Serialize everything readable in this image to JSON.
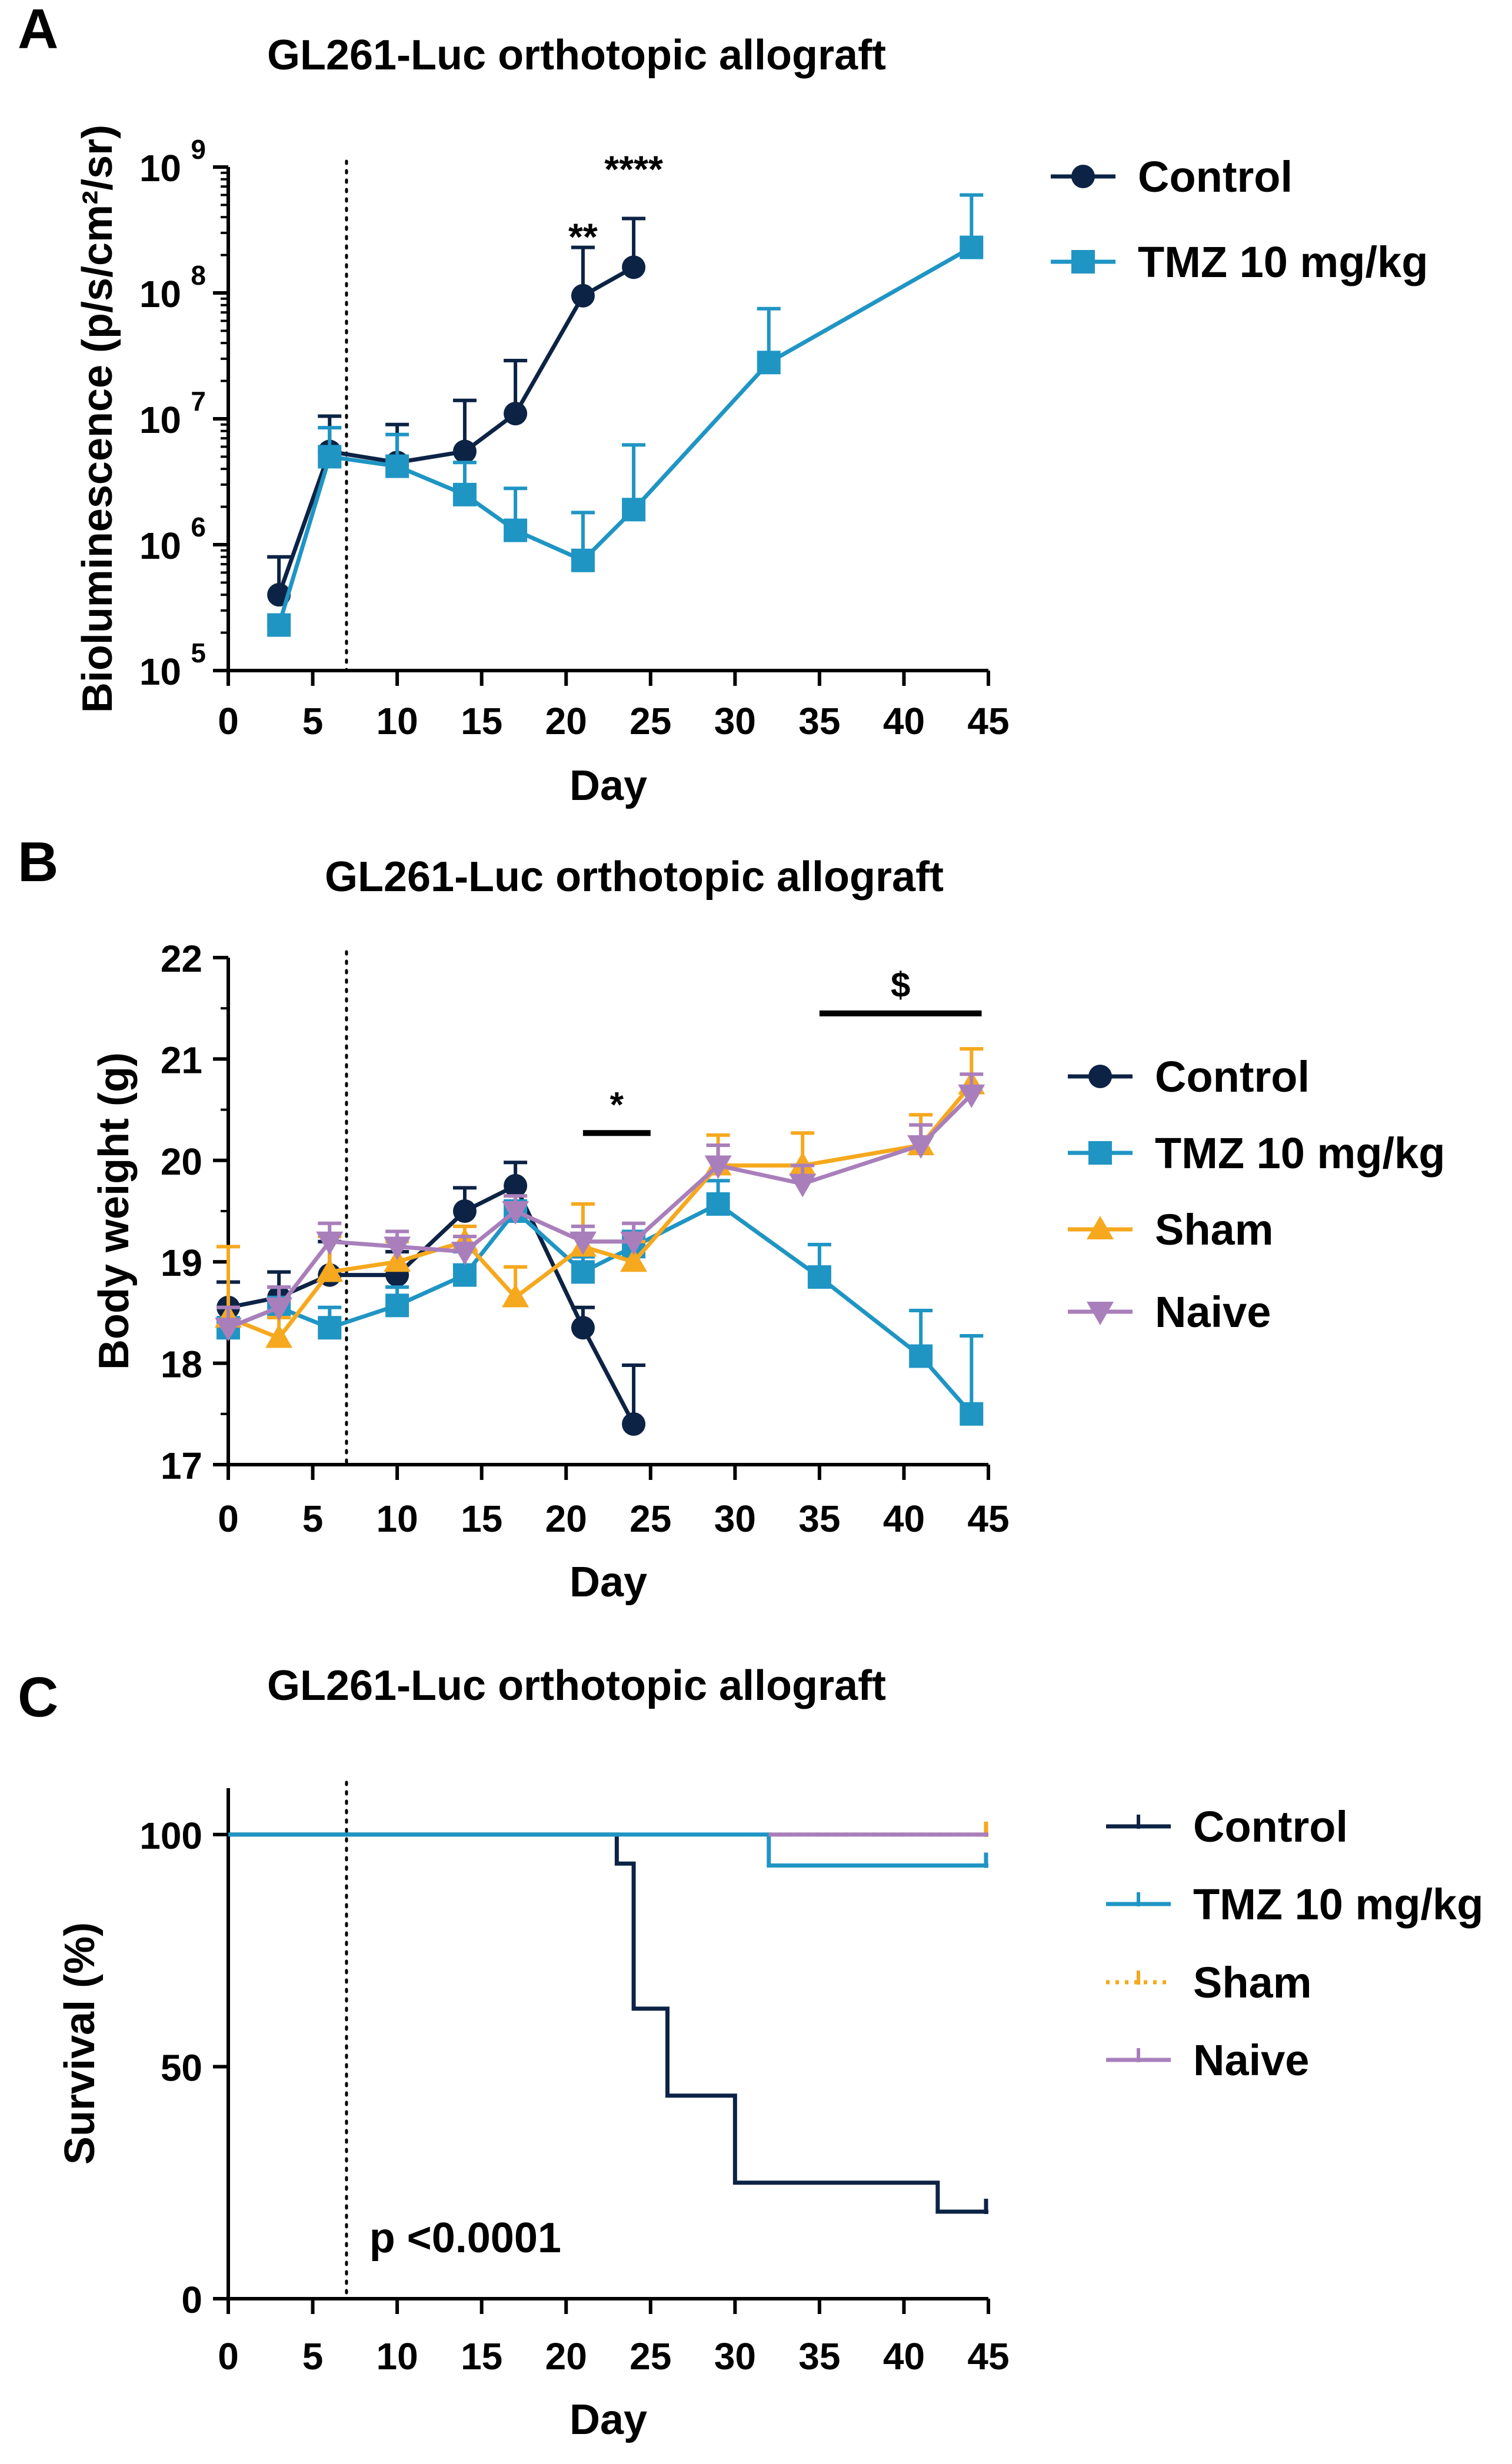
{
  "colors": {
    "control": "#0d2345",
    "tmz": "#1f95c4",
    "sham": "#f6a81e",
    "naive": "#a97fbb",
    "axis": "#000000"
  },
  "chart_data": [
    {
      "panel_letter": "A",
      "type": "line",
      "title": "GL261-Luc orthotopic allograft",
      "xlabel": "Day",
      "ylabel": "Bioluminescence (p/s/cm²/sr)",
      "yscale": "log",
      "xlim": [
        0,
        45
      ],
      "ylim": [
        100000,
        1000000000
      ],
      "xticks": [
        0,
        5,
        10,
        15,
        20,
        25,
        30,
        35,
        40,
        45
      ],
      "yticks": [
        {
          "value": 100000,
          "base": "10",
          "exp": "5"
        },
        {
          "value": 1000000,
          "base": "10",
          "exp": "6"
        },
        {
          "value": 10000000,
          "base": "10",
          "exp": "7"
        },
        {
          "value": 100000000,
          "base": "10",
          "exp": "8"
        },
        {
          "value": 1000000000,
          "base": "10",
          "exp": "9"
        }
      ],
      "treatment_start_day": 7,
      "series": [
        {
          "name": "Control",
          "color_key": "control",
          "marker": "circle",
          "x": [
            3,
            6,
            10,
            14,
            17,
            21,
            24
          ],
          "y": [
            400000,
            5500000,
            4500000,
            5500000,
            11000000,
            95000000,
            160000000
          ],
          "err": [
            800000,
            10500000,
            9000000,
            14000000,
            29000000,
            230000000,
            390000000
          ]
        },
        {
          "name": "TMZ 10 mg/kg",
          "color_key": "tmz",
          "marker": "square",
          "x": [
            3,
            6,
            10,
            14,
            17,
            21,
            24,
            32,
            44
          ],
          "y": [
            230000,
            5000000,
            4200000,
            2500000,
            1300000,
            750000,
            1900000,
            28000000,
            230000000
          ],
          "err": [
            230000,
            8500000,
            7500000,
            4500000,
            2800000,
            1800000,
            6200000,
            75000000,
            600000000
          ]
        }
      ],
      "annotations": [
        {
          "text": "**",
          "x": 21,
          "y": 220000000,
          "color_key": "tmz"
        },
        {
          "text": "****",
          "x": 24,
          "y": 760000000,
          "color_key": "tmz"
        }
      ],
      "legend": {
        "position": "right",
        "entries": [
          "Control",
          "TMZ 10 mg/kg"
        ]
      }
    },
    {
      "panel_letter": "B",
      "type": "line",
      "title": "GL261-Luc orthotopic allograft",
      "xlabel": "Day",
      "ylabel": "Body weight (g)",
      "yscale": "linear",
      "xlim": [
        0,
        45
      ],
      "ylim": [
        17,
        22
      ],
      "xticks": [
        0,
        5,
        10,
        15,
        20,
        25,
        30,
        35,
        40,
        45
      ],
      "yticks": [
        17,
        18,
        19,
        20,
        21,
        22
      ],
      "treatment_start_day": 7,
      "series": [
        {
          "name": "Control",
          "color_key": "control",
          "marker": "circle",
          "x": [
            0,
            3,
            6,
            10,
            14,
            17,
            21,
            24
          ],
          "y": [
            18.55,
            18.65,
            18.87,
            18.87,
            19.5,
            19.75,
            18.35,
            17.4
          ],
          "err": [
            18.8,
            18.9,
            19.2,
            19.1,
            19.73,
            19.98,
            18.55,
            17.98
          ]
        },
        {
          "name": "TMZ 10 mg/kg",
          "color_key": "tmz",
          "marker": "square",
          "x": [
            0,
            3,
            6,
            10,
            14,
            17,
            21,
            24,
            29,
            35,
            41,
            44
          ],
          "y": [
            18.35,
            18.55,
            18.35,
            18.57,
            18.87,
            19.5,
            18.9,
            19.15,
            19.57,
            18.85,
            18.07,
            17.5
          ],
          "err": [
            18.55,
            18.75,
            18.55,
            18.75,
            19.1,
            19.6,
            19.05,
            19.3,
            19.8,
            19.17,
            18.52,
            18.27
          ]
        },
        {
          "name": "Sham",
          "color_key": "sham",
          "marker": "triangle-up",
          "x": [
            0,
            3,
            6,
            10,
            14,
            17,
            21,
            24,
            29,
            34,
            41,
            44
          ],
          "y": [
            18.45,
            18.25,
            18.9,
            19.0,
            19.2,
            18.65,
            19.15,
            19.0,
            19.95,
            19.95,
            20.15,
            20.75
          ],
          "err": [
            19.15,
            18.45,
            19.25,
            19.2,
            19.35,
            18.95,
            19.57,
            19.2,
            20.25,
            20.27,
            20.45,
            21.1
          ]
        },
        {
          "name": "Naive",
          "color_key": "naive",
          "marker": "triangle-down",
          "x": [
            0,
            3,
            6,
            10,
            14,
            17,
            21,
            24,
            29,
            34,
            41,
            44
          ],
          "y": [
            18.35,
            18.55,
            19.2,
            19.15,
            19.1,
            19.5,
            19.2,
            19.2,
            19.95,
            19.77,
            20.15,
            20.65
          ],
          "err": [
            18.55,
            18.75,
            19.38,
            19.3,
            19.25,
            19.65,
            19.35,
            19.38,
            20.15,
            19.95,
            20.35,
            20.85
          ]
        }
      ],
      "annotations": [
        {
          "text": "*",
          "bar_from": 21,
          "bar_to": 25,
          "y": 20.27
        },
        {
          "text": "$",
          "bar_from": 35,
          "bar_to": 44.6,
          "y": 21.45
        }
      ],
      "legend": {
        "position": "right",
        "entries": [
          "Control",
          "TMZ 10 mg/kg",
          "Sham",
          "Naive"
        ]
      }
    },
    {
      "panel_letter": "C",
      "type": "line",
      "title": "GL261-Luc orthotopic allograft",
      "xlabel": "Day",
      "ylabel": "Survival (%)",
      "yscale": "linear",
      "xlim": [
        0,
        45
      ],
      "ylim": [
        0,
        110
      ],
      "xticks": [
        0,
        5,
        10,
        15,
        20,
        25,
        30,
        35,
        40,
        45
      ],
      "yticks": [
        0,
        50,
        100
      ],
      "treatment_start_day": 7,
      "series": [
        {
          "name": "Control",
          "color_key": "control",
          "style": "step",
          "steps": [
            [
              0,
              100
            ],
            [
              23,
              100
            ],
            [
              23,
              93.75
            ],
            [
              24,
              93.75
            ],
            [
              24,
              62.5
            ],
            [
              26,
              62.5
            ],
            [
              26,
              43.75
            ],
            [
              30,
              43.75
            ],
            [
              30,
              25
            ],
            [
              42,
              25
            ],
            [
              42,
              18.75
            ],
            [
              45,
              18.75
            ]
          ],
          "censor": [
            [
              45,
              18.75
            ]
          ]
        },
        {
          "name": "TMZ 10 mg/kg",
          "color_key": "tmz",
          "style": "step",
          "steps": [
            [
              0,
              100
            ],
            [
              32,
              100
            ],
            [
              32,
              93.33
            ],
            [
              45,
              93.33
            ]
          ],
          "censor": [
            [
              45,
              93.33
            ]
          ]
        },
        {
          "name": "Sham",
          "color_key": "sham",
          "style": "step-dotted",
          "steps": [
            [
              32,
              100
            ],
            [
              45,
              100
            ]
          ],
          "censor": [
            [
              45,
              100
            ]
          ]
        },
        {
          "name": "Naive",
          "color_key": "naive",
          "style": "step",
          "steps": [
            [
              32,
              100
            ],
            [
              45,
              100
            ]
          ],
          "censor": []
        }
      ],
      "annotations": [
        {
          "text": "p <0.0001",
          "x": 8,
          "y": 10
        }
      ],
      "legend": {
        "position": "right",
        "entries": [
          "Control",
          "TMZ 10 mg/kg",
          "Sham",
          "Naive"
        ]
      }
    }
  ]
}
